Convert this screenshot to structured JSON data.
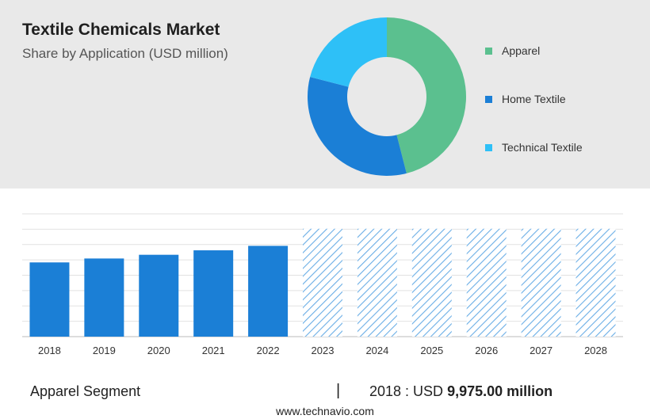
{
  "header": {
    "title": "Textile Chemicals Market",
    "subtitle": "Share by Application (USD million)"
  },
  "chart_data": [
    {
      "type": "pie",
      "style": "donut",
      "slices": [
        {
          "label": "Apparel",
          "value": 46,
          "color": "#5bc08f"
        },
        {
          "label": "Home Textile",
          "value": 33,
          "color": "#1b7fd6"
        },
        {
          "label": "Technical Textile",
          "value": 21,
          "color": "#2ec0f7"
        }
      ],
      "legend": "right"
    },
    {
      "type": "bar",
      "categories": [
        "2018",
        "2019",
        "2020",
        "2021",
        "2022",
        "2023",
        "2024",
        "2025",
        "2026",
        "2027",
        "2028"
      ],
      "values": [
        9975,
        10500,
        11000,
        11600,
        12200,
        14500,
        14500,
        14500,
        14500,
        14500,
        14500
      ],
      "forecast_from": "2023",
      "solid_color": "#1b7fd6",
      "hatch_color": "#6aaee6",
      "grid": true,
      "ylim": [
        0,
        16500
      ]
    }
  ],
  "footer": {
    "segment_label": "Apparel Segment",
    "separator": "|",
    "value_prefix": "2018 : USD",
    "value_bold": "9,975.00 million",
    "source": "www.technavio.com"
  }
}
